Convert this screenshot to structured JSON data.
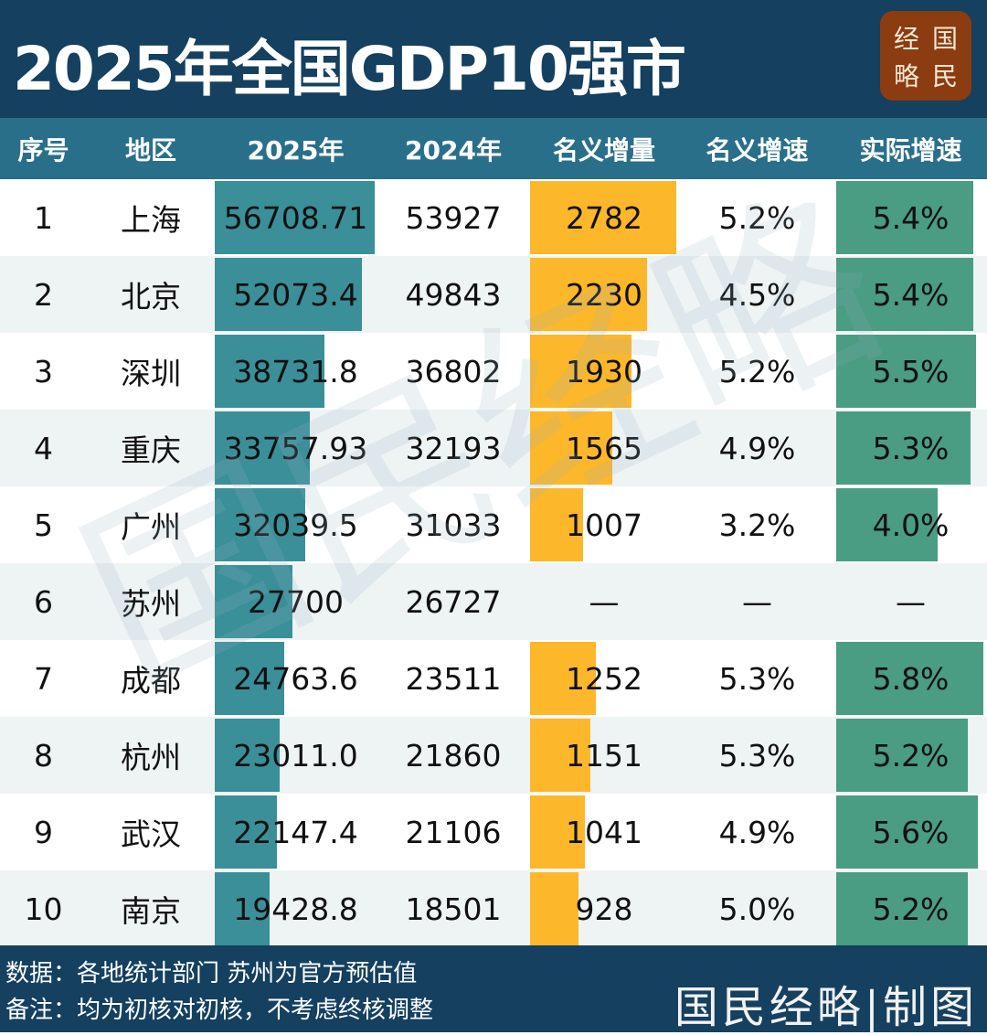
{
  "title": "2025年全国GDP10强市",
  "logo": [
    "经",
    "国",
    "略",
    "民"
  ],
  "watermark": "国民经略",
  "colors": {
    "title_bg": "#15405f",
    "header_bg": "#2a6f8a",
    "gdp_bar": "#3a8f99",
    "increment_bar": "#fdb72a",
    "real_growth_bar": "#4a9c82",
    "logo_bg": "#8b3c10"
  },
  "chart_data": {
    "type": "table",
    "columns": [
      "序号",
      "地区",
      "2025年",
      "2024年",
      "名义增量",
      "名义增速",
      "实际增速"
    ],
    "rows": [
      {
        "rank": "1",
        "city": "上海",
        "gdp2025": "56708.71",
        "gdp2024": "53927",
        "increment": "2782",
        "nominal": "5.2%",
        "real": "5.4%"
      },
      {
        "rank": "2",
        "city": "北京",
        "gdp2025": "52073.4",
        "gdp2024": "49843",
        "increment": "2230",
        "nominal": "4.5%",
        "real": "5.4%"
      },
      {
        "rank": "3",
        "city": "深圳",
        "gdp2025": "38731.8",
        "gdp2024": "36802",
        "increment": "1930",
        "nominal": "5.2%",
        "real": "5.5%"
      },
      {
        "rank": "4",
        "city": "重庆",
        "gdp2025": "33757.93",
        "gdp2024": "32193",
        "increment": "1565",
        "nominal": "4.9%",
        "real": "5.3%"
      },
      {
        "rank": "5",
        "city": "广州",
        "gdp2025": "32039.5",
        "gdp2024": "31033",
        "increment": "1007",
        "nominal": "3.2%",
        "real": "4.0%"
      },
      {
        "rank": "6",
        "city": "苏州",
        "gdp2025": "27700",
        "gdp2024": "26727",
        "increment": "—",
        "nominal": "—",
        "real": "—"
      },
      {
        "rank": "7",
        "city": "成都",
        "gdp2025": "24763.6",
        "gdp2024": "23511",
        "increment": "1252",
        "nominal": "5.3%",
        "real": "5.8%"
      },
      {
        "rank": "8",
        "city": "杭州",
        "gdp2025": "23011.0",
        "gdp2024": "21860",
        "increment": "1151",
        "nominal": "5.3%",
        "real": "5.2%"
      },
      {
        "rank": "9",
        "city": "武汉",
        "gdp2025": "22147.4",
        "gdp2024": "21106",
        "increment": "1041",
        "nominal": "4.9%",
        "real": "5.6%"
      },
      {
        "rank": "10",
        "city": "南京",
        "gdp2025": "19428.8",
        "gdp2024": "18501",
        "increment": "928",
        "nominal": "5.0%",
        "real": "5.2%"
      }
    ]
  },
  "footer": {
    "source": "数据：各地统计部门  苏州为官方预估值",
    "note": "备注：均为初核对初核，不考虑终核调整",
    "brand": "国民经略|制图"
  }
}
